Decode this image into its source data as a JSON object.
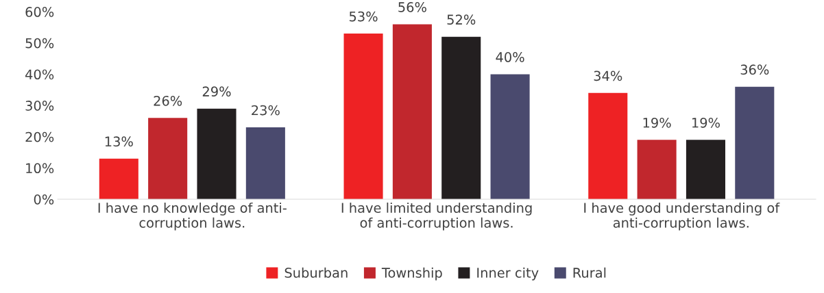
{
  "chart_data": {
    "type": "bar",
    "categories": [
      "I have no knowledge of anti-corruption laws.",
      "I have limited understanding of anti-corruption laws.",
      "I have good understanding of anti-corruption laws."
    ],
    "series": [
      {
        "name": "Suburban",
        "color": "#ee2224",
        "values": [
          13,
          53,
          34
        ],
        "value_labels": [
          "13%",
          "53%",
          "34%"
        ]
      },
      {
        "name": "Township",
        "color": "#c1272d",
        "values": [
          26,
          56,
          19
        ],
        "value_labels": [
          "26%",
          "56%",
          "19%"
        ]
      },
      {
        "name": "Inner city",
        "color": "#231f20",
        "values": [
          29,
          52,
          19
        ],
        "value_labels": [
          "29%",
          "52%",
          "19%"
        ]
      },
      {
        "name": "Rural",
        "color": "#4a4a6e",
        "values": [
          23,
          40,
          36
        ],
        "value_labels": [
          "23%",
          "40%",
          "36%"
        ]
      }
    ],
    "ylim": [
      0,
      60
    ],
    "yticks": [
      {
        "value": 0,
        "label": "0%"
      },
      {
        "value": 10,
        "label": "10%"
      },
      {
        "value": 20,
        "label": "20%"
      },
      {
        "value": 30,
        "label": "30%"
      },
      {
        "value": 40,
        "label": "40%"
      },
      {
        "value": 50,
        "label": "50%"
      },
      {
        "value": 60,
        "label": "60%"
      }
    ],
    "grid": false,
    "legend": "bottom"
  }
}
